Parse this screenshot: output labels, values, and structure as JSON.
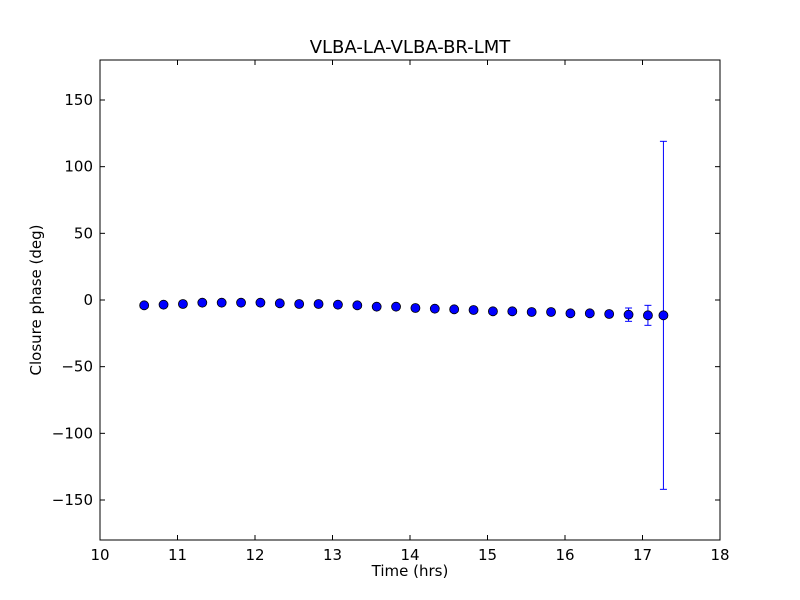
{
  "chart_data": {
    "type": "scatter",
    "title": "VLBA-LA-VLBA-BR-LMT",
    "xlabel": "Time (hrs)",
    "ylabel": "Closure phase (deg)",
    "xlim": [
      10,
      18
    ],
    "ylim": [
      -180,
      180
    ],
    "xticks": [
      10,
      11,
      12,
      13,
      14,
      15,
      16,
      17,
      18
    ],
    "yticks": [
      -150,
      -100,
      -50,
      0,
      50,
      100,
      150
    ],
    "ytick_labels": [
      "−150",
      "−100",
      "−50",
      "0",
      "50",
      "100",
      "150"
    ],
    "grid": false,
    "marker_color": "#0000ff",
    "errorbar_color": "#0000ff",
    "series": [
      {
        "points": [
          {
            "x": 10.57,
            "y": -4,
            "err": 1
          },
          {
            "x": 10.82,
            "y": -3.5,
            "err": 1
          },
          {
            "x": 11.07,
            "y": -3,
            "err": 1
          },
          {
            "x": 11.32,
            "y": -2,
            "err": 1
          },
          {
            "x": 11.57,
            "y": -2,
            "err": 1
          },
          {
            "x": 11.82,
            "y": -2,
            "err": 1
          },
          {
            "x": 12.07,
            "y": -2,
            "err": 1
          },
          {
            "x": 12.32,
            "y": -2.5,
            "err": 1
          },
          {
            "x": 12.57,
            "y": -3,
            "err": 1
          },
          {
            "x": 12.82,
            "y": -3,
            "err": 1
          },
          {
            "x": 13.07,
            "y": -3.5,
            "err": 1
          },
          {
            "x": 13.32,
            "y": -4,
            "err": 1
          },
          {
            "x": 13.57,
            "y": -5,
            "err": 1
          },
          {
            "x": 13.82,
            "y": -5,
            "err": 1
          },
          {
            "x": 14.07,
            "y": -6,
            "err": 1
          },
          {
            "x": 14.32,
            "y": -6.5,
            "err": 1
          },
          {
            "x": 14.57,
            "y": -7,
            "err": 1
          },
          {
            "x": 14.82,
            "y": -7.5,
            "err": 1
          },
          {
            "x": 15.07,
            "y": -8.5,
            "err": 1
          },
          {
            "x": 15.32,
            "y": -8.5,
            "err": 1
          },
          {
            "x": 15.57,
            "y": -9,
            "err": 1
          },
          {
            "x": 15.82,
            "y": -9,
            "err": 1
          },
          {
            "x": 16.07,
            "y": -10,
            "err": 1
          },
          {
            "x": 16.32,
            "y": -10,
            "err": 1
          },
          {
            "x": 16.57,
            "y": -10.5,
            "err": 1.5
          },
          {
            "x": 16.82,
            "y": -11,
            "err": 5
          },
          {
            "x": 17.07,
            "y": -11.5,
            "err": 7.5
          },
          {
            "x": 17.27,
            "y": -11.5,
            "err": 130.5
          }
        ]
      }
    ]
  }
}
